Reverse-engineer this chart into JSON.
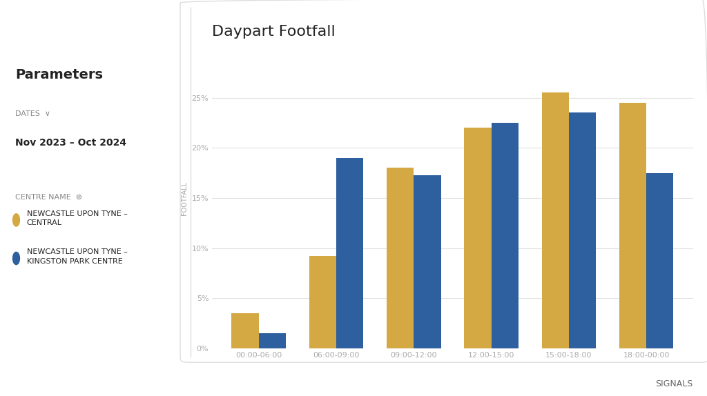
{
  "title": "Daypart Footfall",
  "ylabel": "FOOTFALL",
  "categories": [
    "00:00-06:00",
    "06:00-09:00",
    "09:00-12:00",
    "12:00-15:00",
    "15:00-18:00",
    "18:00-00:00"
  ],
  "series": [
    {
      "name": "NEWCASTLE UPON TYNE - CENTRAL",
      "color": "#D4A843",
      "values": [
        3.5,
        9.2,
        18.0,
        22.0,
        25.5,
        24.5
      ]
    },
    {
      "name": "NEWCASTLE UPON TYNE - KINGSTON PARK CENTRE",
      "color": "#2E5F9E",
      "values": [
        1.5,
        19.0,
        17.3,
        22.5,
        23.5,
        17.5
      ]
    }
  ],
  "ylim": [
    0,
    30
  ],
  "yticks": [
    0,
    5,
    10,
    15,
    20,
    25
  ],
  "ytick_labels": [
    "0%",
    "5%",
    "10%",
    "15%",
    "20%",
    "25%"
  ],
  "bar_width": 0.35,
  "background_color": "#ffffff",
  "plot_bg_color": "#ffffff",
  "grid_color": "#e0e0e0",
  "title_fontsize": 16,
  "axis_label_fontsize": 7,
  "tick_fontsize": 8,
  "legend_dot_color_1": "#D4A843",
  "legend_dot_color_2": "#2E5F9E",
  "panel_bg": "#ffffff",
  "left_panel_bg": "#ffffff",
  "border_color": "#dddddd"
}
